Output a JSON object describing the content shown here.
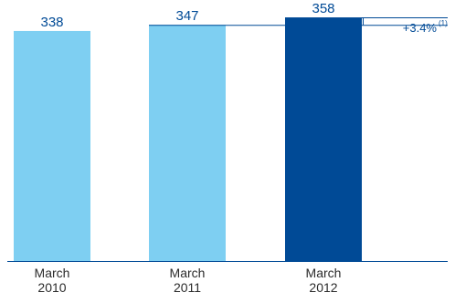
{
  "chart_data": {
    "type": "bar",
    "categories": [
      "March\n2010",
      "March\n2011",
      "March\n2012"
    ],
    "values": [
      338,
      347,
      358
    ],
    "value_labels": [
      "338",
      "347",
      "358"
    ],
    "bar_colors": [
      "#7ecff2",
      "#7ecff2",
      "#004a96"
    ],
    "label_color": "#004a96",
    "reference_line_color": "#004a96",
    "axis_color": "#004a96",
    "growth_annotation": {
      "text": "+3.4%",
      "footnote": "(1)"
    },
    "title": "",
    "xlabel": "",
    "ylabel": "",
    "ylim": [
      0,
      370
    ],
    "grid": false,
    "legend": false
  }
}
